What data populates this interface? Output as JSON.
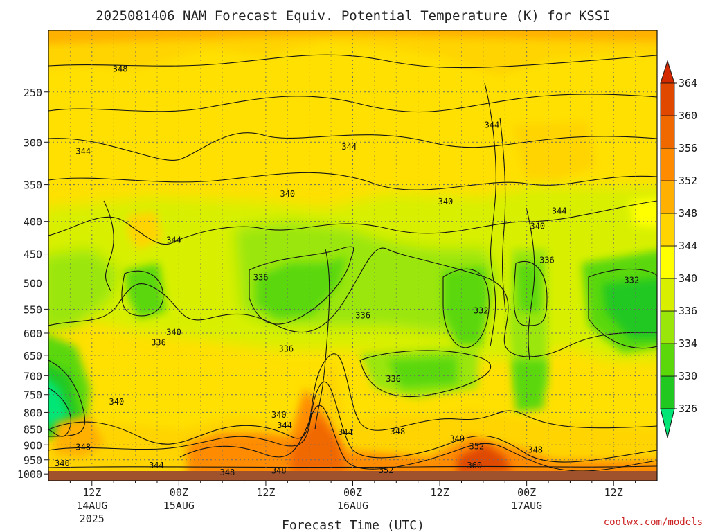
{
  "chart_data": {
    "type": "heatmap",
    "title": "2025081406 NAM Forecast Equiv. Potential Temperature (K) for KSSI",
    "xlabel": "Forecast Time (UTC)",
    "ylabel": "",
    "units": "K",
    "y_ticks": [
      "250",
      "300",
      "350",
      "400",
      "450",
      "500",
      "550",
      "600",
      "650",
      "700",
      "750",
      "800",
      "850",
      "900",
      "950",
      "1000"
    ],
    "y_tick_values": [
      250,
      300,
      350,
      400,
      450,
      500,
      550,
      600,
      650,
      700,
      750,
      800,
      850,
      900,
      950,
      1000
    ],
    "y_range": [
      200,
      1025
    ],
    "y_scale": "log",
    "x_ticks": [
      {
        "time": "12Z",
        "date": "14AUG",
        "year": "2025",
        "hours": 6
      },
      {
        "time": "00Z",
        "date": "15AUG",
        "year": "",
        "hours": 18
      },
      {
        "time": "12Z",
        "date": "",
        "year": "",
        "hours": 30
      },
      {
        "time": "00Z",
        "date": "16AUG",
        "year": "",
        "hours": 42
      },
      {
        "time": "12Z",
        "date": "",
        "year": "",
        "hours": 54
      },
      {
        "time": "00Z",
        "date": "17AUG",
        "year": "",
        "hours": 66
      },
      {
        "time": "12Z",
        "date": "",
        "year": "",
        "hours": 78
      }
    ],
    "x_range": [
      0,
      84
    ],
    "grid": true,
    "colorbar": {
      "levels": [
        326,
        330,
        334,
        336,
        340,
        344,
        348,
        352,
        356,
        360,
        364
      ],
      "labels": [
        "326",
        "330",
        "334",
        "336",
        "340",
        "344",
        "348",
        "352",
        "356",
        "360",
        "364"
      ],
      "colors": [
        "#00e676",
        "#20c820",
        "#5ad80a",
        "#9ae60a",
        "#d8f000",
        "#ffff00",
        "#ffd400",
        "#ffb000",
        "#ff8c00",
        "#f06800",
        "#e04800",
        "#d42a00"
      ]
    },
    "contour_labels": [
      {
        "text": "348",
        "t": 9.9,
        "p": 230
      },
      {
        "text": "344",
        "t": 4.8,
        "p": 310
      },
      {
        "text": "344",
        "t": 41.5,
        "p": 305
      },
      {
        "text": "344",
        "t": 61.2,
        "p": 282
      },
      {
        "text": "340",
        "t": 33.0,
        "p": 362
      },
      {
        "text": "340",
        "t": 54.8,
        "p": 372
      },
      {
        "text": "344",
        "t": 70.5,
        "p": 385
      },
      {
        "text": "344",
        "t": 17.3,
        "p": 428
      },
      {
        "text": "340",
        "t": 67.5,
        "p": 407
      },
      {
        "text": "336",
        "t": 68.8,
        "p": 460
      },
      {
        "text": "332",
        "t": 80.5,
        "p": 495
      },
      {
        "text": "336",
        "t": 29.3,
        "p": 490
      },
      {
        "text": "336",
        "t": 43.4,
        "p": 563
      },
      {
        "text": "332",
        "t": 59.7,
        "p": 553
      },
      {
        "text": "340",
        "t": 17.3,
        "p": 598
      },
      {
        "text": "336",
        "t": 15.2,
        "p": 621
      },
      {
        "text": "336",
        "t": 32.8,
        "p": 635
      },
      {
        "text": "336",
        "t": 47.6,
        "p": 708
      },
      {
        "text": "340",
        "t": 9.4,
        "p": 770
      },
      {
        "text": "340",
        "t": 31.8,
        "p": 807
      },
      {
        "text": "344",
        "t": 32.6,
        "p": 838
      },
      {
        "text": "344",
        "t": 41.0,
        "p": 860
      },
      {
        "text": "348",
        "t": 48.2,
        "p": 857
      },
      {
        "text": "340",
        "t": 56.4,
        "p": 880
      },
      {
        "text": "348",
        "t": 4.8,
        "p": 907
      },
      {
        "text": "352",
        "t": 59.1,
        "p": 905
      },
      {
        "text": "348",
        "t": 67.2,
        "p": 917
      },
      {
        "text": "340",
        "t": 1.9,
        "p": 962
      },
      {
        "text": "344",
        "t": 14.9,
        "p": 970
      },
      {
        "text": "348",
        "t": 24.7,
        "p": 995
      },
      {
        "text": "348",
        "t": 31.8,
        "p": 988
      },
      {
        "text": "352",
        "t": 46.6,
        "p": 987
      },
      {
        "text": "360",
        "t": 58.8,
        "p": 970
      }
    ]
  },
  "credit": "coolwx.com/models"
}
